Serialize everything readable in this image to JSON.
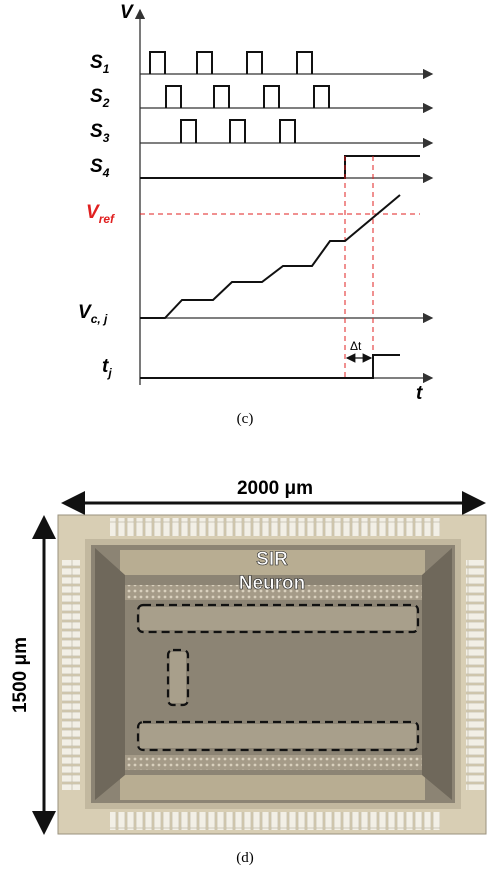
{
  "figure_c": {
    "axis_v": "V",
    "signals": [
      {
        "base": "S",
        "sub": "1"
      },
      {
        "base": "S",
        "sub": "2"
      },
      {
        "base": "S",
        "sub": "3"
      },
      {
        "base": "S",
        "sub": "4"
      }
    ],
    "vref": {
      "base": "V",
      "sub": "ref"
    },
    "vc": {
      "base": "V",
      "sub": "c, j"
    },
    "tj": {
      "base": "t",
      "sub": "j"
    },
    "delta_t": "Δt",
    "axis_t": "t",
    "caption": "(c)"
  },
  "figure_d": {
    "width_label": "2000 μm",
    "height_label": "1500 μm",
    "chip_label_1": "SIR",
    "chip_label_2": "Neuron",
    "caption": "(d)"
  }
}
